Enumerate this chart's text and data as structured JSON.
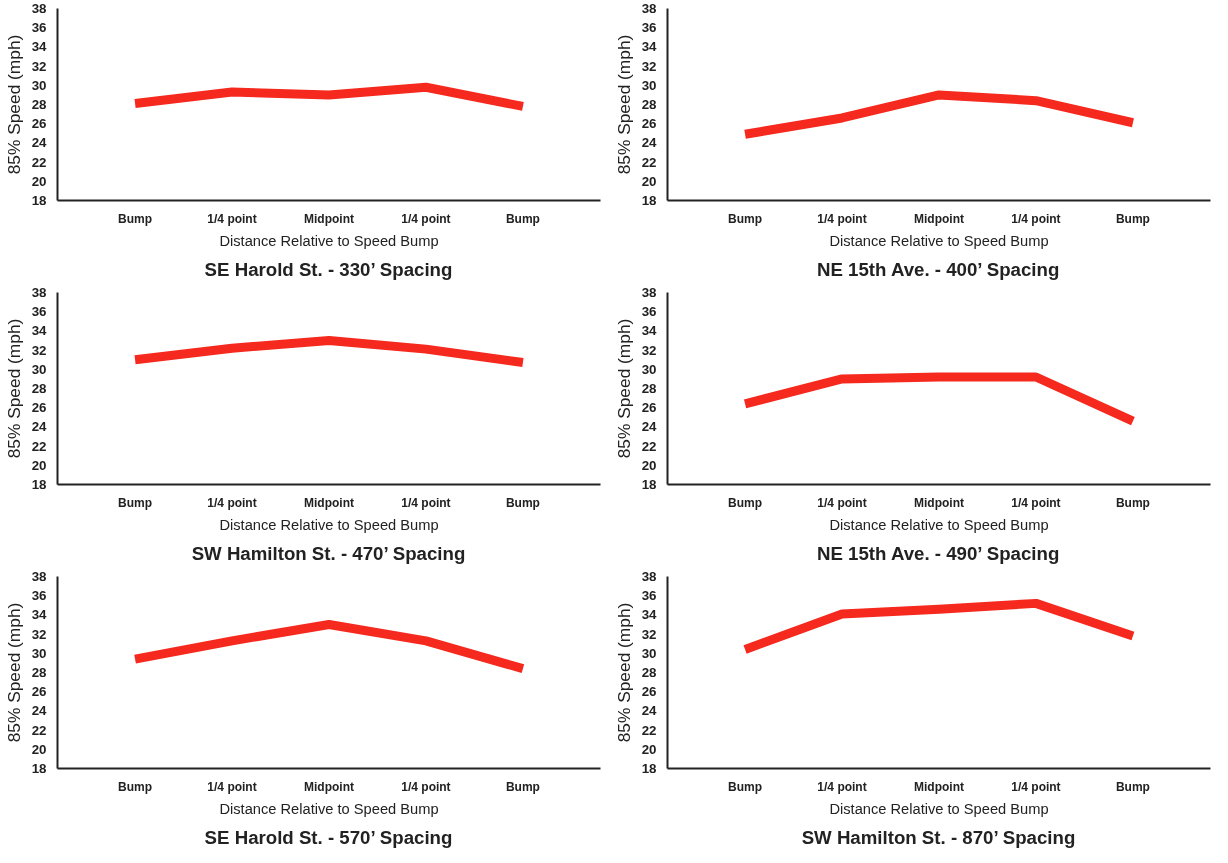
{
  "chart_data": [
    {
      "type": "line",
      "title": "SE Harold St. - 330’ Spacing",
      "xlabel": "Distance Relative to Speed Bump",
      "ylabel": "85% Speed (mph)",
      "categories": [
        "Bump",
        "1/4 point",
        "Midpoint",
        "1/4 point",
        "Bump"
      ],
      "series": [
        {
          "color": "#f5291e",
          "values": [
            28.1,
            29.3,
            29.0,
            29.8,
            27.8
          ]
        }
      ],
      "ylim": [
        18,
        38
      ],
      "yticks": [
        18,
        20,
        22,
        24,
        26,
        28,
        30,
        32,
        34,
        36,
        38
      ],
      "grid": false,
      "marker": "none",
      "line_style": "solid"
    },
    {
      "type": "line",
      "title": "NE 15th Ave. - 400’ Spacing",
      "xlabel": "Distance Relative to Speed Bump",
      "ylabel": "85% Speed (mph)",
      "categories": [
        "Bump",
        "1/4 point",
        "Midpoint",
        "1/4 point",
        "Bump"
      ],
      "series": [
        {
          "color": "#f5291e",
          "values": [
            24.9,
            26.6,
            29.0,
            28.4,
            26.1
          ]
        }
      ],
      "ylim": [
        18,
        38
      ],
      "yticks": [
        18,
        20,
        22,
        24,
        26,
        28,
        30,
        32,
        34,
        36,
        38
      ],
      "grid": false,
      "marker": "none",
      "line_style": "solid"
    },
    {
      "type": "line",
      "title": "SW Hamilton St. - 470’ Spacing",
      "xlabel": "Distance Relative to Speed Bump",
      "ylabel": "85% Speed (mph)",
      "categories": [
        "Bump",
        "1/4 point",
        "Midpoint",
        "1/4 point",
        "Bump"
      ],
      "series": [
        {
          "color": "#f5291e",
          "values": [
            31.0,
            32.2,
            33.0,
            32.1,
            30.7
          ]
        }
      ],
      "ylim": [
        18,
        38
      ],
      "yticks": [
        18,
        20,
        22,
        24,
        26,
        28,
        30,
        32,
        34,
        36,
        38
      ],
      "grid": false,
      "marker": "none",
      "line_style": "solid"
    },
    {
      "type": "line",
      "title": "NE 15th Ave. - 490’ Spacing",
      "xlabel": "Distance Relative to Speed Bump",
      "ylabel": "85% Speed (mph)",
      "categories": [
        "Bump",
        "1/4 point",
        "Midpoint",
        "1/4 point",
        "Bump"
      ],
      "series": [
        {
          "color": "#f5291e",
          "values": [
            26.4,
            29.0,
            29.2,
            29.2,
            24.6
          ]
        }
      ],
      "ylim": [
        18,
        38
      ],
      "yticks": [
        18,
        20,
        22,
        24,
        26,
        28,
        30,
        32,
        34,
        36,
        38
      ],
      "grid": false,
      "marker": "none",
      "line_style": "solid"
    },
    {
      "type": "line",
      "title": "SE Harold St. - 570’ Spacing",
      "xlabel": "Distance Relative to Speed Bump",
      "ylabel": "85% Speed (mph)",
      "categories": [
        "Bump",
        "1/4 point",
        "Midpoint",
        "1/4 point",
        "Bump"
      ],
      "series": [
        {
          "color": "#f5291e",
          "values": [
            29.4,
            31.3,
            33.0,
            31.3,
            28.4
          ]
        }
      ],
      "ylim": [
        18,
        38
      ],
      "yticks": [
        18,
        20,
        22,
        24,
        26,
        28,
        30,
        32,
        34,
        36,
        38
      ],
      "grid": false,
      "marker": "none",
      "line_style": "solid"
    },
    {
      "type": "line",
      "title": "SW Hamilton St. - 870’ Spacing",
      "xlabel": "Distance Relative to Speed Bump",
      "ylabel": "85% Speed (mph)",
      "categories": [
        "Bump",
        "1/4 point",
        "Midpoint",
        "1/4 point",
        "Bump"
      ],
      "series": [
        {
          "color": "#f5291e",
          "values": [
            30.4,
            34.1,
            34.6,
            35.2,
            31.8
          ]
        }
      ],
      "ylim": [
        18,
        38
      ],
      "yticks": [
        18,
        20,
        22,
        24,
        26,
        28,
        30,
        32,
        34,
        36,
        38
      ],
      "grid": false,
      "marker": "none",
      "line_style": "solid"
    }
  ]
}
